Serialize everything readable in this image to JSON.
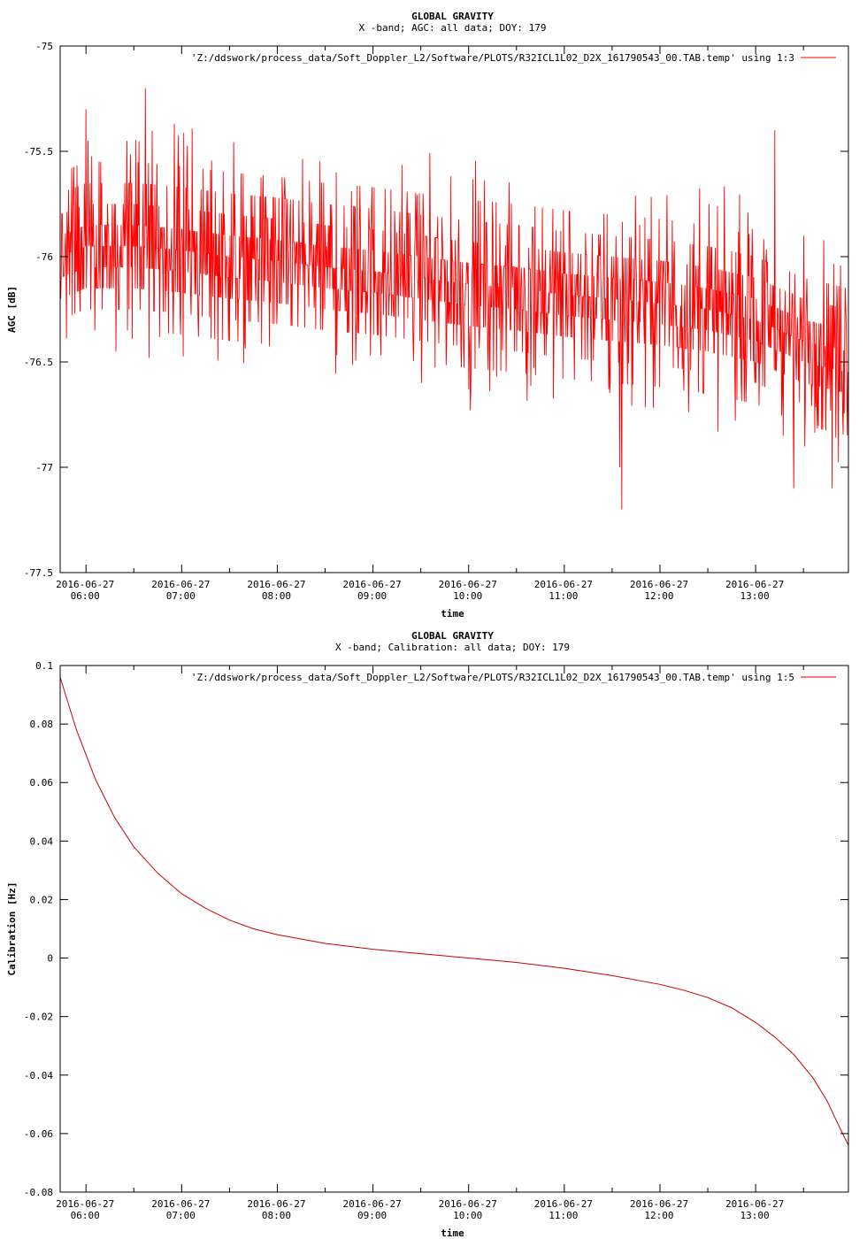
{
  "chart_data": [
    {
      "type": "line",
      "title": "GLOBAL GRAVITY",
      "subtitle": "X -band; AGC: all data; DOY: 179",
      "xlabel": "time",
      "ylabel": "AGC [dB]",
      "ylim": [
        -77.5,
        -75
      ],
      "yticks": [
        -75,
        -75.5,
        -76,
        -76.5,
        -77,
        -77.5
      ],
      "ytick_labels": [
        "-75",
        "-75.5",
        "-76",
        "-76.5",
        "-77",
        "-77.5"
      ],
      "xlim": [
        5.73,
        13.97
      ],
      "xticks_minor": [
        5.5,
        6,
        6.5,
        7,
        7.5,
        8,
        8.5,
        9,
        9.5,
        10,
        10.5,
        11,
        11.5,
        12,
        12.5,
        13,
        13.5,
        14
      ],
      "xtick_labels": [
        {
          "x": 6,
          "date": "2016-06-27",
          "time": "06:00"
        },
        {
          "x": 7,
          "date": "2016-06-27",
          "time": "07:00"
        },
        {
          "x": 8,
          "date": "2016-06-27",
          "time": "08:00"
        },
        {
          "x": 9,
          "date": "2016-06-27",
          "time": "09:00"
        },
        {
          "x": 10,
          "date": "2016-06-27",
          "time": "10:00"
        },
        {
          "x": 11,
          "date": "2016-06-27",
          "time": "11:00"
        },
        {
          "x": 12,
          "date": "2016-06-27",
          "time": "12:00"
        },
        {
          "x": 13,
          "date": "2016-06-27",
          "time": "13:00"
        }
      ],
      "grid": false,
      "legend_position": "top-right",
      "series": [
        {
          "name": "'Z:/ddswork/process_data/Soft_Doppler_L2/Software/PLOTS/R32ICL1L02_D2X_161790543_00.TAB.temp' using 1:3",
          "color": "#ff0000",
          "style": "noisy",
          "x": [
            5.73,
            6.0,
            6.5,
            7.0,
            7.5,
            8.0,
            8.5,
            9.0,
            9.5,
            10.0,
            10.5,
            11.0,
            11.5,
            12.0,
            12.5,
            13.0,
            13.5,
            13.97
          ],
          "values": [
            -76.0,
            -75.95,
            -75.95,
            -75.97,
            -76.0,
            -76.02,
            -76.05,
            -76.07,
            -76.1,
            -76.13,
            -76.15,
            -76.18,
            -76.2,
            -76.22,
            -76.25,
            -76.3,
            -76.4,
            -76.45
          ],
          "spread": 0.3,
          "extremes": [
            {
              "x": 6.62,
              "value": -75.2
            },
            {
              "x": 6.0,
              "value": -75.3
            },
            {
              "x": 11.6,
              "value": -77.2
            },
            {
              "x": 11.58,
              "value": -77.0
            },
            {
              "x": 13.4,
              "value": -77.1
            },
            {
              "x": 13.8,
              "value": -77.1
            },
            {
              "x": 13.2,
              "value": -75.4
            }
          ]
        }
      ]
    },
    {
      "type": "line",
      "title": "GLOBAL GRAVITY",
      "subtitle": "X -band; Calibration: all data; DOY: 179",
      "xlabel": "time",
      "ylabel": "Calibration [Hz]",
      "ylim": [
        -0.08,
        0.1
      ],
      "yticks": [
        0.1,
        0.08,
        0.06,
        0.04,
        0.02,
        0,
        -0.02,
        -0.04,
        -0.06,
        -0.08
      ],
      "ytick_labels": [
        "0.1",
        "0.08",
        "0.06",
        "0.04",
        "0.02",
        "0",
        "-0.02",
        "-0.04",
        "-0.06",
        "-0.08"
      ],
      "xlim": [
        5.73,
        13.97
      ],
      "xticks_minor": [
        5.5,
        6,
        6.5,
        7,
        7.5,
        8,
        8.5,
        9,
        9.5,
        10,
        10.5,
        11,
        11.5,
        12,
        12.5,
        13,
        13.5,
        14
      ],
      "xtick_labels": [
        {
          "x": 6,
          "date": "2016-06-27",
          "time": "06:00"
        },
        {
          "x": 7,
          "date": "2016-06-27",
          "time": "07:00"
        },
        {
          "x": 8,
          "date": "2016-06-27",
          "time": "08:00"
        },
        {
          "x": 9,
          "date": "2016-06-27",
          "time": "09:00"
        },
        {
          "x": 10,
          "date": "2016-06-27",
          "time": "10:00"
        },
        {
          "x": 11,
          "date": "2016-06-27",
          "time": "11:00"
        },
        {
          "x": 12,
          "date": "2016-06-27",
          "time": "12:00"
        },
        {
          "x": 13,
          "date": "2016-06-27",
          "time": "13:00"
        }
      ],
      "grid": false,
      "legend_position": "top-right",
      "series": [
        {
          "name": "'Z:/ddswork/process_data/Soft_Doppler_L2/Software/PLOTS/R32ICL1L02_D2X_161790543_00.TAB.temp' using 1:5",
          "color": "#cc0000",
          "style": "line",
          "x": [
            5.73,
            5.9,
            6.1,
            6.3,
            6.5,
            6.75,
            7.0,
            7.25,
            7.5,
            7.75,
            8.0,
            8.5,
            9.0,
            9.5,
            10.0,
            10.5,
            11.0,
            11.5,
            12.0,
            12.25,
            12.5,
            12.75,
            13.0,
            13.2,
            13.4,
            13.6,
            13.75,
            13.85,
            13.97
          ],
          "values": [
            0.096,
            0.078,
            0.061,
            0.048,
            0.038,
            0.029,
            0.022,
            0.017,
            0.013,
            0.01,
            0.008,
            0.005,
            0.003,
            0.0015,
            0.0,
            -0.0015,
            -0.0035,
            -0.006,
            -0.009,
            -0.011,
            -0.0135,
            -0.017,
            -0.022,
            -0.027,
            -0.033,
            -0.041,
            -0.049,
            -0.056,
            -0.064
          ]
        }
      ]
    }
  ]
}
